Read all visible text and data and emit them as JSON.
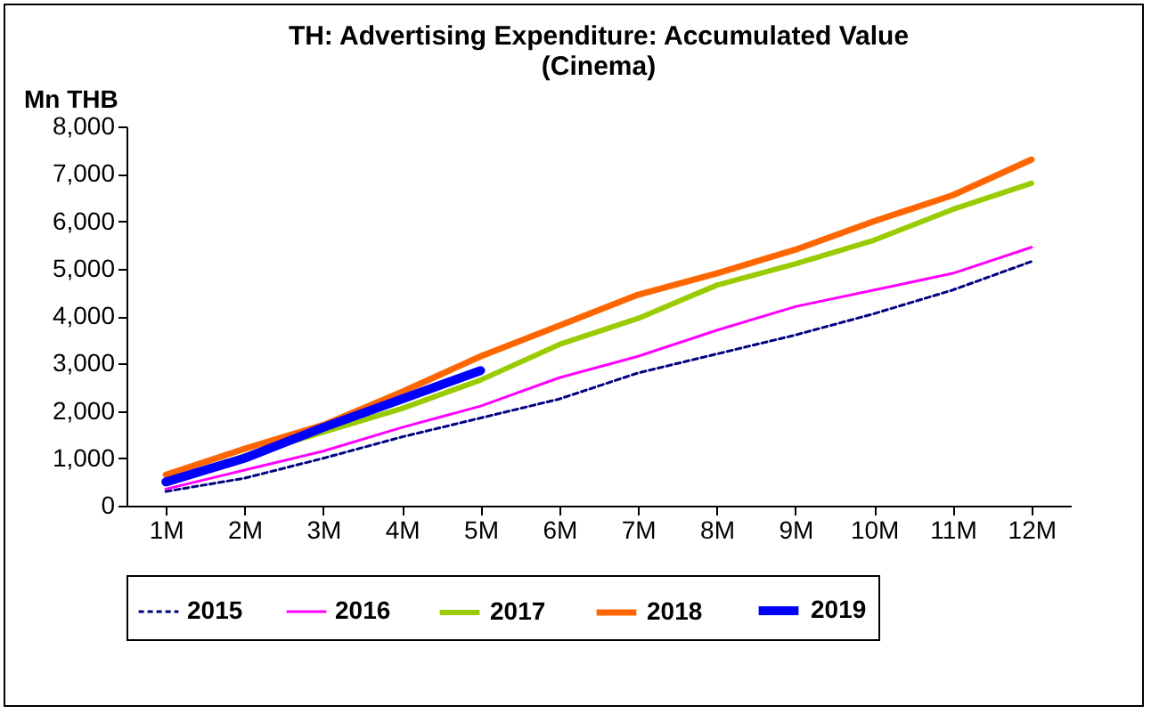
{
  "chart_data": {
    "type": "line",
    "title": "TH: Advertising Expenditure: Accumulated Value (Cinema)",
    "ylabel": "Mn THB",
    "categories": [
      "1M",
      "2M",
      "3M",
      "4M",
      "5M",
      "6M",
      "7M",
      "8M",
      "9M",
      "10M",
      "11M",
      "12M"
    ],
    "ylim": [
      0,
      8000
    ],
    "yticks": [
      0,
      {
        "value": 1000,
        "label": "1,000"
      },
      {
        "value": 2000,
        "label": "2,000"
      },
      {
        "value": 3000,
        "label": "3,000"
      },
      {
        "value": 4000,
        "label": "4,000"
      },
      {
        "value": 5000,
        "label": "5,000"
      },
      {
        "value": 6000,
        "label": "6,000"
      },
      {
        "value": 7000,
        "label": "7,000"
      },
      {
        "value": 8000,
        "label": "8,000"
      }
    ],
    "grid": false,
    "legend": "bottom",
    "series": [
      {
        "name": "2015",
        "color": "#000080",
        "line_style": "dashed",
        "values": [
          300,
          580,
          1000,
          1450,
          1850,
          2250,
          2800,
          3200,
          3600,
          4050,
          4550,
          5150
        ]
      },
      {
        "name": "2016",
        "color": "#ff00ff",
        "line_style": "solid",
        "values": [
          350,
          750,
          1150,
          1650,
          2100,
          2700,
          3150,
          3700,
          4200,
          4550,
          4900,
          5450
        ]
      },
      {
        "name": "2017",
        "color": "#99cc00",
        "line_style": "solid",
        "values": [
          500,
          1050,
          1550,
          2050,
          2650,
          3400,
          3950,
          4650,
          5100,
          5600,
          6250,
          6800
        ]
      },
      {
        "name": "2018",
        "color": "#ff6600",
        "line_style": "solid",
        "values": [
          650,
          1200,
          1700,
          2400,
          3150,
          3800,
          4450,
          4900,
          5400,
          6000,
          6550,
          7300
        ]
      },
      {
        "name": "2019",
        "color": "#0000ff",
        "line_style": "solid",
        "values": [
          500,
          1000,
          1650,
          2250,
          2850,
          null,
          null,
          null,
          null,
          null,
          null,
          null
        ]
      }
    ]
  }
}
